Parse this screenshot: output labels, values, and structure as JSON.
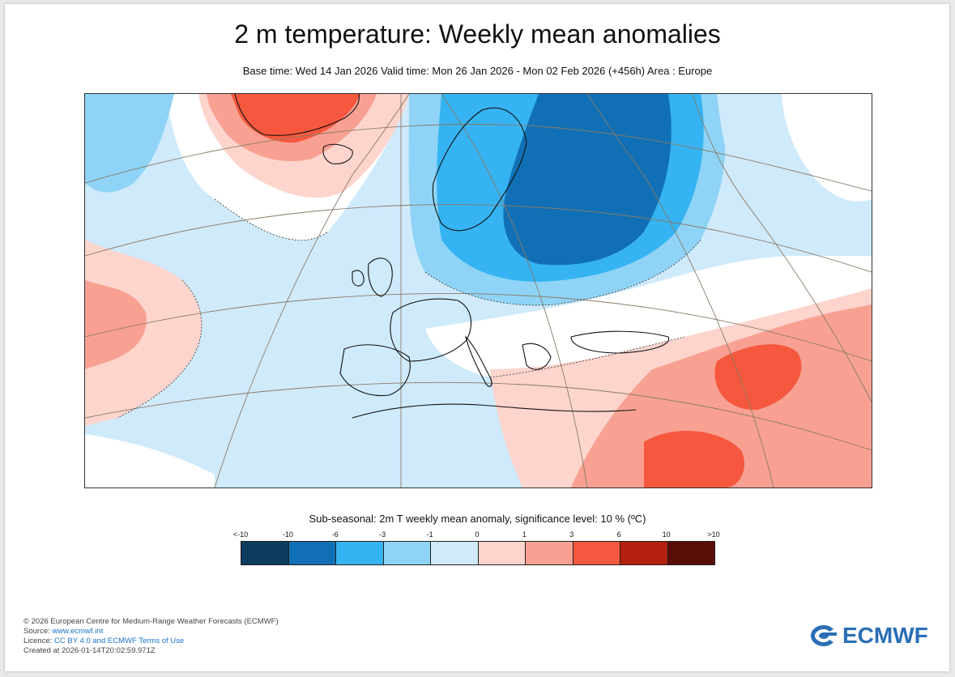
{
  "header": {
    "title": "2 m temperature: Weekly mean anomalies",
    "subtitle": "Base time: Wed 14 Jan 2026 Valid time: Mon 26 Jan 2026 - Mon 02 Feb 2026 (+456h) Area : Europe"
  },
  "legend": {
    "title": "Sub-seasonal: 2m T weekly mean anomaly, significance level: 10 % (ºC)",
    "ticks": [
      "<-10",
      "-10",
      "-6",
      "-3",
      "-1",
      "0",
      "1",
      "3",
      "6",
      "10",
      ">10"
    ],
    "colors": [
      "#0c3c5e",
      "#1170b5",
      "#36b3f2",
      "#8fd4f7",
      "#cfeafb",
      "#fdd5cd",
      "#f8a192",
      "#f5583e",
      "#b32010",
      "#5a0c06"
    ]
  },
  "map": {
    "area": "Europe",
    "colors": {
      "neutral": "#ffffff",
      "light_blue": "#cfeafb",
      "mid_blue": "#8fd4f7",
      "blue": "#36b3f2",
      "dark_blue": "#1170b5",
      "light_red": "#fdd5cd",
      "red": "#f8a192",
      "strong_red": "#f5583e"
    }
  },
  "footer": {
    "copyright": "© 2026 European Centre for Medium-Range Weather Forecasts (ECMWF)",
    "source_label": "Source: ",
    "source_link": "www.ecmwf.int",
    "licence_label": "Licence: ",
    "licence_link": "CC BY 4.0 and ECMWF Terms of Use",
    "created": "Created at 2026-01-14T20:02:59.971Z"
  },
  "logo": {
    "text": "ECMWF"
  }
}
